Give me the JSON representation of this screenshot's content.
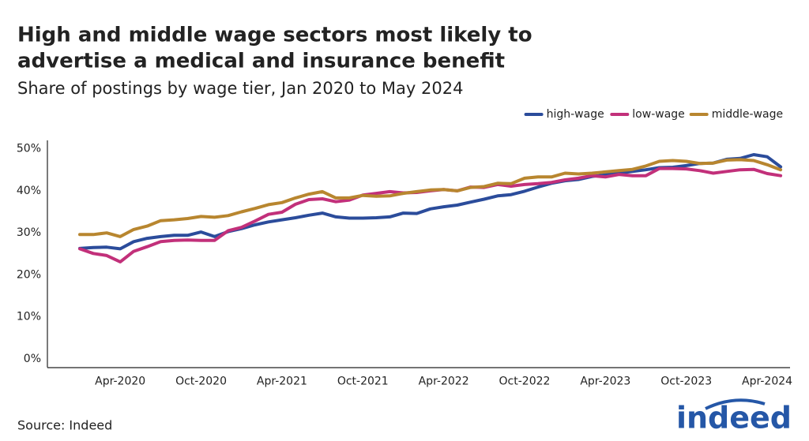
{
  "chart_data": {
    "type": "line",
    "title": [
      "High and middle wage sectors most likely to",
      "advertise a medical and insurance benefit"
    ],
    "subtitle": "Share of postings by wage tier, Jan 2020 to May 2024",
    "source": "Source: Indeed",
    "logo": "indeed",
    "categories": [
      null,
      null,
      null,
      "Apr-2020",
      null,
      null,
      null,
      null,
      null,
      "Oct-2020",
      null,
      null,
      null,
      null,
      null,
      "Apr-2021",
      null,
      null,
      null,
      null,
      null,
      "Oct-2021",
      null,
      null,
      null,
      null,
      null,
      "Apr-2022",
      null,
      null,
      null,
      null,
      null,
      "Oct-2022",
      null,
      null,
      null,
      null,
      null,
      "Apr-2023",
      null,
      null,
      null,
      null,
      null,
      "Oct-2023",
      null,
      null,
      null,
      null,
      null,
      "Apr-2024",
      null
    ],
    "series": [
      {
        "name": "high-wage",
        "color": "#2b4c9b",
        "values": [
          26.3,
          26.5,
          26.6,
          26.2,
          27.9,
          28.7,
          29.1,
          29.4,
          29.4,
          30.2,
          29.1,
          30.3,
          31.0,
          31.9,
          32.6,
          33.1,
          33.6,
          34.2,
          34.7,
          33.8,
          33.5,
          33.5,
          33.6,
          33.8,
          34.7,
          34.6,
          35.7,
          36.2,
          36.6,
          37.3,
          38.0,
          38.8,
          39.1,
          39.9,
          40.9,
          41.8,
          42.4,
          42.7,
          43.4,
          43.8,
          44.2,
          44.6,
          45.0,
          45.5,
          45.6,
          46.0,
          46.5,
          46.6,
          47.5,
          47.7,
          48.6,
          48.1,
          45.7
        ]
      },
      {
        "name": "low-wage",
        "color": "#c2307a",
        "values": [
          26.2,
          25.1,
          24.6,
          23.1,
          25.6,
          26.7,
          27.9,
          28.2,
          28.3,
          28.2,
          28.2,
          30.5,
          31.3,
          32.8,
          34.4,
          34.9,
          36.8,
          37.9,
          38.1,
          37.4,
          37.8,
          39.0,
          39.4,
          39.8,
          39.5,
          39.6,
          40.0,
          40.3,
          40.0,
          40.9,
          40.8,
          41.5,
          41.1,
          41.5,
          41.7,
          42.0,
          42.6,
          43.0,
          43.6,
          43.3,
          43.9,
          43.6,
          43.6,
          45.3,
          45.3,
          45.2,
          44.8,
          44.2,
          44.6,
          45.0,
          45.1,
          44.1,
          43.6
        ]
      },
      {
        "name": "middle-wage",
        "color": "#b8862f",
        "values": [
          29.6,
          29.6,
          30.0,
          29.1,
          30.8,
          31.6,
          32.9,
          33.1,
          33.4,
          33.9,
          33.7,
          34.1,
          35.0,
          35.8,
          36.7,
          37.2,
          38.3,
          39.2,
          39.8,
          38.3,
          38.3,
          38.9,
          38.7,
          38.8,
          39.4,
          39.8,
          40.2,
          40.3,
          40.0,
          40.8,
          41.0,
          41.8,
          41.7,
          43.0,
          43.3,
          43.3,
          44.2,
          44.0,
          44.2,
          44.5,
          44.8,
          45.1,
          45.9,
          47.0,
          47.2,
          47.0,
          46.5,
          46.6,
          47.3,
          47.4,
          47.2,
          46.2,
          45.0
        ]
      }
    ],
    "ylim": [
      -2,
      52
    ],
    "yticks": [
      {
        "value": 0,
        "label": "0%"
      },
      {
        "value": 10,
        "label": "10%"
      },
      {
        "value": 20,
        "label": "20%"
      },
      {
        "value": 30,
        "label": "30%"
      },
      {
        "value": 40,
        "label": "40%"
      },
      {
        "value": 50,
        "label": "50%"
      }
    ],
    "legend": "top-right"
  }
}
